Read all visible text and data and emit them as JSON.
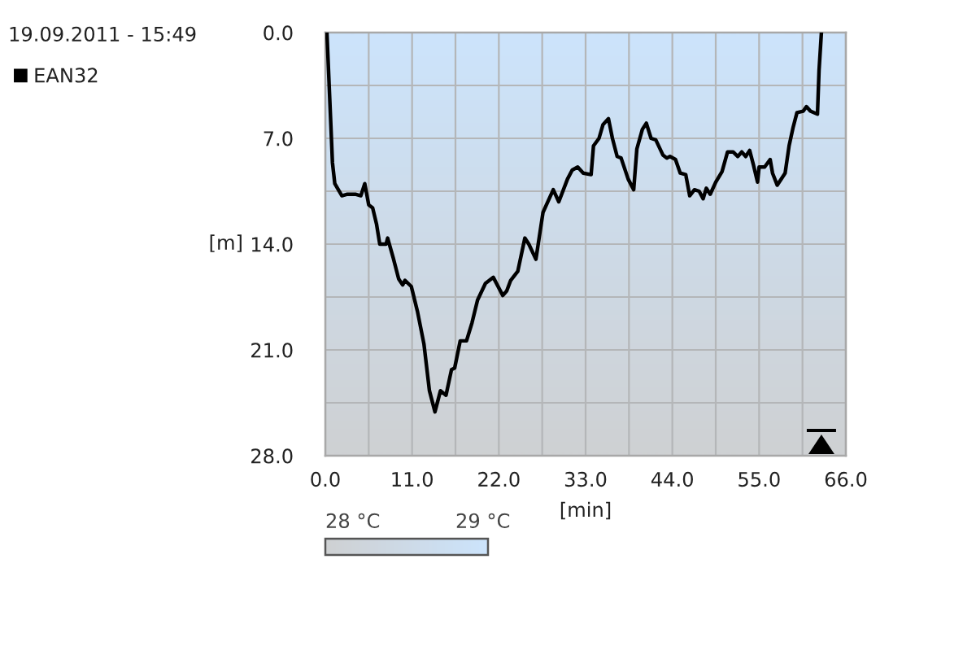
{
  "chart_data": {
    "type": "line",
    "title": "19.09.2011 - 15:49",
    "xlabel": "[min]",
    "ylabel": "[m]",
    "x": [
      0.2,
      0.7,
      0.9,
      1.2,
      2.1,
      2.8,
      3.8,
      4.5,
      5.0,
      5.5,
      6.0,
      6.5,
      6.9,
      7.7,
      7.9,
      8.6,
      9.3,
      9.8,
      10.1,
      10.9,
      11.7,
      12.5,
      13.2,
      13.9,
      14.6,
      15.3,
      16.0,
      16.4,
      17.1,
      17.9,
      18.6,
      19.3,
      20.3,
      21.3,
      21.9,
      22.5,
      23.0,
      23.5,
      24.4,
      25.3,
      25.8,
      26.7,
      27.6,
      28.9,
      29.6,
      30.7,
      31.3,
      32.0,
      32.7,
      33.7,
      34.0,
      34.7,
      35.2,
      35.9,
      36.4,
      37.0,
      37.5,
      38.4,
      39.1,
      39.5,
      40.2,
      40.7,
      41.3,
      41.9,
      42.8,
      43.3,
      43.7,
      44.4,
      45.0,
      45.7,
      46.2,
      46.8,
      47.4,
      47.9,
      48.3,
      48.8,
      49.5,
      50.3,
      51.0,
      51.7,
      52.3,
      52.8,
      53.3,
      53.8,
      54.3,
      54.8,
      55.0,
      55.7,
      56.4,
      56.7,
      57.3,
      58.3,
      58.8,
      59.3,
      59.8,
      60.6,
      61.0,
      61.5,
      62.4,
      62.6,
      62.9
    ],
    "series": [
      {
        "name": "EAN32",
        "color": "#000000",
        "values": [
          0,
          6.1,
          8.6,
          10.0,
          10.8,
          10.7,
          10.7,
          10.8,
          10.0,
          11.4,
          11.6,
          12.7,
          14.0,
          14.0,
          13.6,
          14.9,
          16.3,
          16.7,
          16.4,
          16.8,
          18.5,
          20.6,
          23.7,
          25.1,
          23.7,
          24.0,
          22.3,
          22.2,
          20.4,
          20.4,
          19.2,
          17.7,
          16.6,
          16.2,
          16.8,
          17.4,
          17.1,
          16.4,
          15.8,
          13.6,
          14.0,
          15.0,
          11.9,
          10.4,
          11.2,
          9.7,
          9.1,
          8.9,
          9.3,
          9.4,
          7.5,
          7.0,
          6.1,
          5.7,
          7.0,
          8.2,
          8.3,
          9.7,
          10.4,
          7.7,
          6.4,
          6.0,
          7.0,
          7.1,
          8.1,
          8.3,
          8.2,
          8.4,
          9.3,
          9.4,
          10.8,
          10.4,
          10.5,
          11.0,
          10.3,
          10.7,
          9.9,
          9.2,
          7.9,
          7.9,
          8.2,
          7.9,
          8.2,
          7.8,
          8.8,
          9.9,
          8.9,
          8.9,
          8.4,
          9.3,
          10.1,
          9.3,
          7.5,
          6.3,
          5.3,
          5.2,
          4.9,
          5.2,
          5.4,
          2.5,
          0
        ]
      }
    ],
    "xlim": [
      0,
      66
    ],
    "ylim": [
      28,
      0
    ],
    "xticks": [
      {
        "value": 0,
        "label": "0.0"
      },
      {
        "value": 5.5,
        "label": null
      },
      {
        "value": 11,
        "label": "11.0"
      },
      {
        "value": 16.5,
        "label": null
      },
      {
        "value": 22,
        "label": "22.0"
      },
      {
        "value": 27.5,
        "label": null
      },
      {
        "value": 33,
        "label": "33.0"
      },
      {
        "value": 38.5,
        "label": null
      },
      {
        "value": 44,
        "label": "44.0"
      },
      {
        "value": 49.5,
        "label": null
      },
      {
        "value": 55,
        "label": "55.0"
      },
      {
        "value": 60.5,
        "label": null
      },
      {
        "value": 66,
        "label": "66.0"
      }
    ],
    "yticks": [
      {
        "value": 0,
        "label": "0.0"
      },
      {
        "value": 3.5,
        "label": null
      },
      {
        "value": 7,
        "label": "7.0"
      },
      {
        "value": 10.5,
        "label": null
      },
      {
        "value": 14,
        "label": "14.0"
      },
      {
        "value": 17.5,
        "label": null
      },
      {
        "value": 21,
        "label": "21.0"
      },
      {
        "value": 24.5,
        "label": null
      },
      {
        "value": 28,
        "label": "28.0"
      }
    ],
    "annotations": [
      "28 °C",
      "29 °C"
    ],
    "grid": true,
    "legend": "top left"
  }
}
